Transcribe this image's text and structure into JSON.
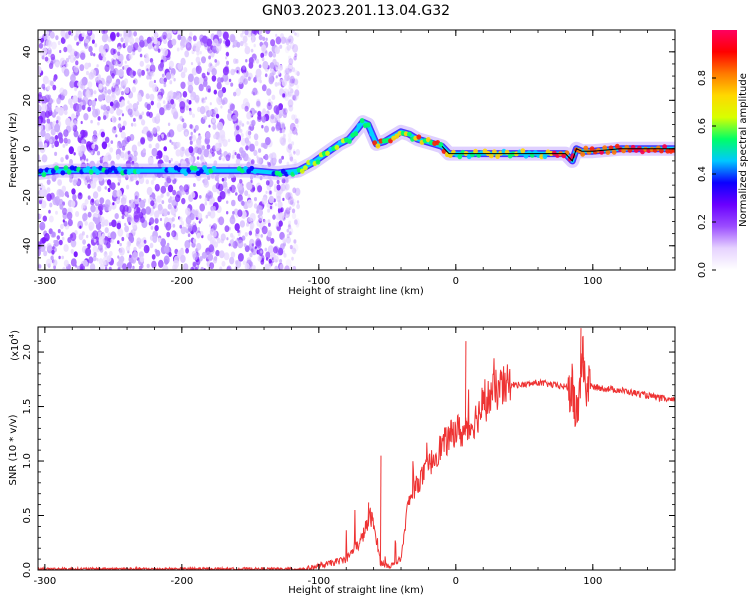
{
  "title": "GN03.2023.201.13.04.G32",
  "colors": {
    "snr_line": "#ee3333",
    "ridge_line": "#000000",
    "gradient": [
      "#ffffff",
      "#e6d2ff",
      "#9b4dff",
      "#6a00ff",
      "#0b00ff",
      "#00c8ff",
      "#00ff66",
      "#d8ff00",
      "#ffd800",
      "#ff7a00",
      "#ff0000",
      "#ff0060"
    ]
  },
  "chart_data": [
    {
      "type": "heatmap",
      "xlabel": "Height of straight line (km)",
      "ylabel": "Frequency (Hz)",
      "xlim": [
        -305,
        160
      ],
      "ylim": [
        -50,
        49
      ],
      "xticks": [
        -300,
        -200,
        -100,
        0,
        100
      ],
      "yticks": [
        -40,
        -20,
        0,
        20,
        40
      ],
      "ridge": {
        "x": [
          -305,
          -290,
          -270,
          -250,
          -230,
          -210,
          -190,
          -170,
          -150,
          -130,
          -115,
          -105,
          -95,
          -85,
          -78,
          -72,
          -68,
          -64,
          -58,
          -52,
          -46,
          -40,
          -34,
          -28,
          -22,
          -16,
          -10,
          -5,
          0,
          20,
          40,
          60,
          80,
          85,
          88,
          92,
          100,
          120,
          140,
          160
        ],
        "y": [
          -10,
          -9,
          -9,
          -9,
          -9,
          -9,
          -9,
          -9,
          -9,
          -10,
          -9,
          -6,
          -2,
          2,
          4,
          8,
          11,
          10,
          2,
          3,
          5,
          7,
          6,
          4,
          3,
          2,
          1,
          -2,
          -2,
          -2,
          -2,
          -2,
          -2,
          -5,
          0,
          -1,
          -1,
          0,
          0,
          0
        ]
      },
      "colorbar": {
        "label": "Normalized spectral amplitude",
        "range": [
          0,
          1
        ],
        "ticks": [
          0.0,
          0.2,
          0.4,
          0.6,
          0.8
        ]
      }
    },
    {
      "type": "line",
      "xlabel": "Height of straight line (km)",
      "ylabel": "SNR (10 * v/v)",
      "scale_label": "(x10",
      "scale_exp": "4",
      "scale_close": ")",
      "xlim": [
        -305,
        160
      ],
      "ylim": [
        0,
        2.23
      ],
      "xticks": [
        -300,
        -200,
        -100,
        0,
        100
      ],
      "yticks": [
        0.0,
        0.5,
        1.0,
        1.5,
        2.0
      ],
      "series": [
        {
          "x": [
            -305,
            -200,
            -110,
            -95,
            -80,
            -70,
            -62,
            -58,
            -55,
            -52,
            -48,
            -45,
            -40,
            -35,
            -30,
            -25,
            -20,
            -15,
            -10,
            -5,
            0,
            5,
            10,
            15,
            20,
            25,
            30,
            40,
            50,
            60,
            70,
            80,
            85,
            88,
            90,
            92,
            95,
            100,
            120,
            140,
            160
          ],
          "y": [
            0.01,
            0.01,
            0.01,
            0.05,
            0.1,
            0.25,
            0.5,
            0.3,
            0.07,
            0.05,
            0.04,
            0.05,
            0.1,
            0.6,
            0.75,
            0.85,
            0.95,
            1.05,
            1.15,
            1.2,
            1.3,
            1.25,
            1.3,
            1.4,
            1.5,
            1.6,
            1.65,
            1.7,
            1.7,
            1.72,
            1.7,
            1.68,
            1.65,
            1.4,
            1.6,
            2.0,
            1.7,
            1.68,
            1.65,
            1.6,
            1.55
          ]
        }
      ]
    }
  ]
}
